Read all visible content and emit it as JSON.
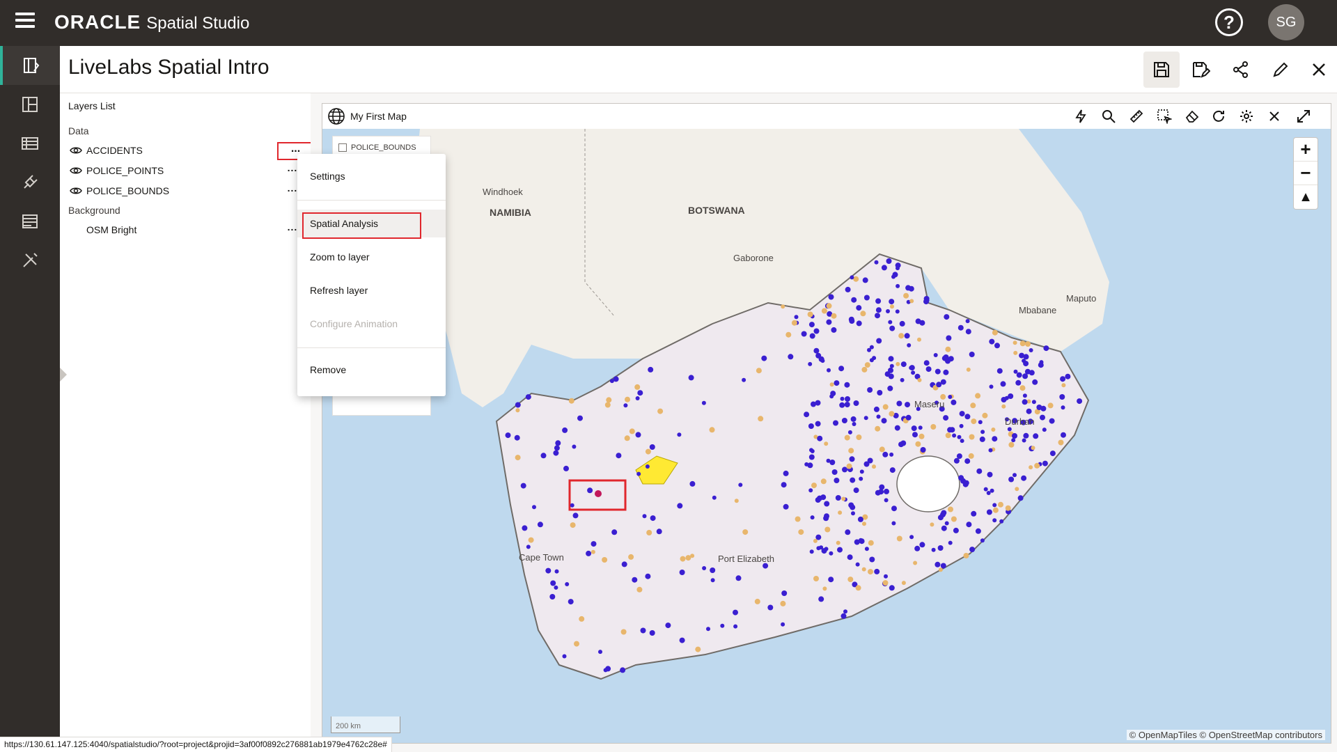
{
  "app": {
    "brand": "ORACLE",
    "product": "Spatial Studio",
    "user_initials": "SG",
    "help": "?"
  },
  "project": {
    "title": "LiveLabs Spatial Intro"
  },
  "layers_panel": {
    "title": "Layers List",
    "data_section": "Data",
    "layers": [
      {
        "name": "ACCIDENTS"
      },
      {
        "name": "POLICE_POINTS"
      },
      {
        "name": "POLICE_BOUNDS"
      }
    ],
    "background_section": "Background",
    "background_layers": [
      {
        "name": "OSM Bright"
      }
    ],
    "more": "..."
  },
  "context_menu": {
    "items": [
      {
        "label": "Settings",
        "enabled": true
      },
      {
        "label": "Spatial Analysis",
        "enabled": true,
        "highlighted": true
      },
      {
        "label": "Zoom to layer",
        "enabled": true
      },
      {
        "label": "Refresh layer",
        "enabled": true
      },
      {
        "label": "Configure Animation",
        "enabled": false
      },
      {
        "label": "Remove",
        "enabled": true
      }
    ]
  },
  "map": {
    "name": "My First Map",
    "legend_item": "POLICE_BOUNDS",
    "scale": "200 km",
    "attribution": "© OpenMapTiles  © OpenStreetMap contributors",
    "labels": {
      "windhoek": "Windhoek",
      "namibia": "NAMIBIA",
      "botswana": "BOTSWANA",
      "gaborone": "Gaborone",
      "maputo": "Maputo",
      "mbabane": "Mbabane",
      "maseru": "Maseru",
      "durban": "Durban",
      "cape_town": "Cape Town",
      "port_elizabeth": "Port Elizabeth"
    },
    "colors": {
      "water": "#bfd9ee",
      "land": "#f2efe9",
      "country": "#efe9ef",
      "marker": "#3a1fd1",
      "highlight": "#ffe933",
      "annotation": "#e0272d"
    }
  },
  "status_url": "https://130.61.147.125:4040/spatialstudio/?root=project&projid=3af00f0892c276881ab1979e4762c28e#"
}
